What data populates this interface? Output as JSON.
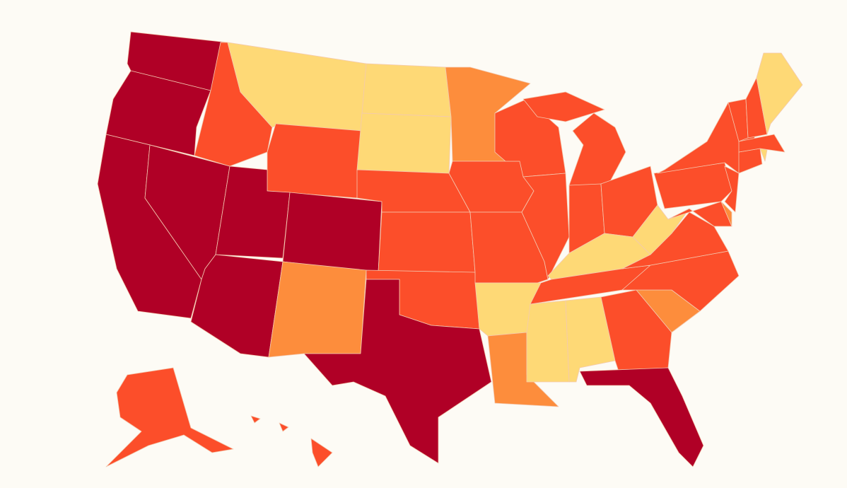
{
  "map": {
    "palette": [
      "#b00026",
      "#fc4e2a",
      "#fd8d3c",
      "#fed976"
    ],
    "background": "#fdfbf5",
    "border_color": "#f3c9b0"
  }
}
